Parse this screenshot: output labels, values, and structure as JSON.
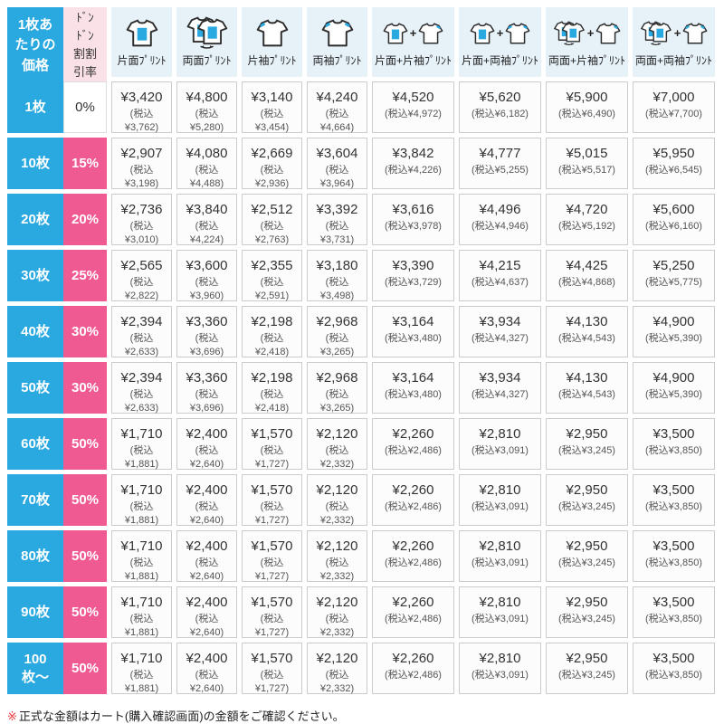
{
  "colors": {
    "blue": "#2AA9E0",
    "pink": "#EF5A93",
    "header_pink_bg": "#FAE1E7",
    "header_blue_bg": "#E6F1F8",
    "note_red": "#E8383D"
  },
  "header": {
    "price_label": "1枚あたりの価格",
    "discount_label": "ﾄﾞﾝﾄﾞﾝ割割引率",
    "columns": [
      {
        "label": "片面ﾌﾟﾘﾝﾄ",
        "icon": "front-print-shirt-icon"
      },
      {
        "label": "両面ﾌﾟﾘﾝﾄ",
        "icon": "double-sided-print-shirt-icon"
      },
      {
        "label": "片袖ﾌﾟﾘﾝﾄ",
        "icon": "one-sleeve-print-shirt-icon"
      },
      {
        "label": "両袖ﾌﾟﾘﾝﾄ",
        "icon": "both-sleeves-print-shirt-icon"
      },
      {
        "label": "片面+片袖ﾌﾟﾘﾝﾄ",
        "icon": "front-plus-one-sleeve-icon"
      },
      {
        "label": "片面+両袖ﾌﾟﾘﾝﾄ",
        "icon": "front-plus-both-sleeves-icon"
      },
      {
        "label": "両面+片袖ﾌﾟﾘﾝﾄ",
        "icon": "double-plus-one-sleeve-icon"
      },
      {
        "label": "両面+両袖ﾌﾟﾘﾝﾄ",
        "icon": "double-plus-both-sleeves-icon"
      }
    ]
  },
  "rows": [
    {
      "quantity": "1枚",
      "discount": "0%",
      "prices": [
        {
          "price": "¥3,420",
          "tax": "(税込¥3,762)"
        },
        {
          "price": "¥4,800",
          "tax": "(税込¥5,280)"
        },
        {
          "price": "¥3,140",
          "tax": "(税込¥3,454)"
        },
        {
          "price": "¥4,240",
          "tax": "(税込¥4,664)"
        },
        {
          "price": "¥4,520",
          "tax": "(税込¥4,972)"
        },
        {
          "price": "¥5,620",
          "tax": "(税込¥6,182)"
        },
        {
          "price": "¥5,900",
          "tax": "(税込¥6,490)"
        },
        {
          "price": "¥7,000",
          "tax": "(税込¥7,700)"
        }
      ]
    },
    {
      "quantity": "10枚",
      "discount": "15%",
      "prices": [
        {
          "price": "¥2,907",
          "tax": "(税込¥3,198)"
        },
        {
          "price": "¥4,080",
          "tax": "(税込¥4,488)"
        },
        {
          "price": "¥2,669",
          "tax": "(税込¥2,936)"
        },
        {
          "price": "¥3,604",
          "tax": "(税込¥3,964)"
        },
        {
          "price": "¥3,842",
          "tax": "(税込¥4,226)"
        },
        {
          "price": "¥4,777",
          "tax": "(税込¥5,255)"
        },
        {
          "price": "¥5,015",
          "tax": "(税込¥5,517)"
        },
        {
          "price": "¥5,950",
          "tax": "(税込¥6,545)"
        }
      ]
    },
    {
      "quantity": "20枚",
      "discount": "20%",
      "prices": [
        {
          "price": "¥2,736",
          "tax": "(税込¥3,010)"
        },
        {
          "price": "¥3,840",
          "tax": "(税込¥4,224)"
        },
        {
          "price": "¥2,512",
          "tax": "(税込¥2,763)"
        },
        {
          "price": "¥3,392",
          "tax": "(税込¥3,731)"
        },
        {
          "price": "¥3,616",
          "tax": "(税込¥3,978)"
        },
        {
          "price": "¥4,496",
          "tax": "(税込¥4,946)"
        },
        {
          "price": "¥4,720",
          "tax": "(税込¥5,192)"
        },
        {
          "price": "¥5,600",
          "tax": "(税込¥6,160)"
        }
      ]
    },
    {
      "quantity": "30枚",
      "discount": "25%",
      "prices": [
        {
          "price": "¥2,565",
          "tax": "(税込¥2,822)"
        },
        {
          "price": "¥3,600",
          "tax": "(税込¥3,960)"
        },
        {
          "price": "¥2,355",
          "tax": "(税込¥2,591)"
        },
        {
          "price": "¥3,180",
          "tax": "(税込¥3,498)"
        },
        {
          "price": "¥3,390",
          "tax": "(税込¥3,729)"
        },
        {
          "price": "¥4,215",
          "tax": "(税込¥4,637)"
        },
        {
          "price": "¥4,425",
          "tax": "(税込¥4,868)"
        },
        {
          "price": "¥5,250",
          "tax": "(税込¥5,775)"
        }
      ]
    },
    {
      "quantity": "40枚",
      "discount": "30%",
      "prices": [
        {
          "price": "¥2,394",
          "tax": "(税込¥2,633)"
        },
        {
          "price": "¥3,360",
          "tax": "(税込¥3,696)"
        },
        {
          "price": "¥2,198",
          "tax": "(税込¥2,418)"
        },
        {
          "price": "¥2,968",
          "tax": "(税込¥3,265)"
        },
        {
          "price": "¥3,164",
          "tax": "(税込¥3,480)"
        },
        {
          "price": "¥3,934",
          "tax": "(税込¥4,327)"
        },
        {
          "price": "¥4,130",
          "tax": "(税込¥4,543)"
        },
        {
          "price": "¥4,900",
          "tax": "(税込¥5,390)"
        }
      ]
    },
    {
      "quantity": "50枚",
      "discount": "30%",
      "prices": [
        {
          "price": "¥2,394",
          "tax": "(税込¥2,633)"
        },
        {
          "price": "¥3,360",
          "tax": "(税込¥3,696)"
        },
        {
          "price": "¥2,198",
          "tax": "(税込¥2,418)"
        },
        {
          "price": "¥2,968",
          "tax": "(税込¥3,265)"
        },
        {
          "price": "¥3,164",
          "tax": "(税込¥3,480)"
        },
        {
          "price": "¥3,934",
          "tax": "(税込¥4,327)"
        },
        {
          "price": "¥4,130",
          "tax": "(税込¥4,543)"
        },
        {
          "price": "¥4,900",
          "tax": "(税込¥5,390)"
        }
      ]
    },
    {
      "quantity": "60枚",
      "discount": "50%",
      "prices": [
        {
          "price": "¥1,710",
          "tax": "(税込¥1,881)"
        },
        {
          "price": "¥2,400",
          "tax": "(税込¥2,640)"
        },
        {
          "price": "¥1,570",
          "tax": "(税込¥1,727)"
        },
        {
          "price": "¥2,120",
          "tax": "(税込¥2,332)"
        },
        {
          "price": "¥2,260",
          "tax": "(税込¥2,486)"
        },
        {
          "price": "¥2,810",
          "tax": "(税込¥3,091)"
        },
        {
          "price": "¥2,950",
          "tax": "(税込¥3,245)"
        },
        {
          "price": "¥3,500",
          "tax": "(税込¥3,850)"
        }
      ]
    },
    {
      "quantity": "70枚",
      "discount": "50%",
      "prices": [
        {
          "price": "¥1,710",
          "tax": "(税込¥1,881)"
        },
        {
          "price": "¥2,400",
          "tax": "(税込¥2,640)"
        },
        {
          "price": "¥1,570",
          "tax": "(税込¥1,727)"
        },
        {
          "price": "¥2,120",
          "tax": "(税込¥2,332)"
        },
        {
          "price": "¥2,260",
          "tax": "(税込¥2,486)"
        },
        {
          "price": "¥2,810",
          "tax": "(税込¥3,091)"
        },
        {
          "price": "¥2,950",
          "tax": "(税込¥3,245)"
        },
        {
          "price": "¥3,500",
          "tax": "(税込¥3,850)"
        }
      ]
    },
    {
      "quantity": "80枚",
      "discount": "50%",
      "prices": [
        {
          "price": "¥1,710",
          "tax": "(税込¥1,881)"
        },
        {
          "price": "¥2,400",
          "tax": "(税込¥2,640)"
        },
        {
          "price": "¥1,570",
          "tax": "(税込¥1,727)"
        },
        {
          "price": "¥2,120",
          "tax": "(税込¥2,332)"
        },
        {
          "price": "¥2,260",
          "tax": "(税込¥2,486)"
        },
        {
          "price": "¥2,810",
          "tax": "(税込¥3,091)"
        },
        {
          "price": "¥2,950",
          "tax": "(税込¥3,245)"
        },
        {
          "price": "¥3,500",
          "tax": "(税込¥3,850)"
        }
      ]
    },
    {
      "quantity": "90枚",
      "discount": "50%",
      "prices": [
        {
          "price": "¥1,710",
          "tax": "(税込¥1,881)"
        },
        {
          "price": "¥2,400",
          "tax": "(税込¥2,640)"
        },
        {
          "price": "¥1,570",
          "tax": "(税込¥1,727)"
        },
        {
          "price": "¥2,120",
          "tax": "(税込¥2,332)"
        },
        {
          "price": "¥2,260",
          "tax": "(税込¥2,486)"
        },
        {
          "price": "¥2,810",
          "tax": "(税込¥3,091)"
        },
        {
          "price": "¥2,950",
          "tax": "(税込¥3,245)"
        },
        {
          "price": "¥3,500",
          "tax": "(税込¥3,850)"
        }
      ]
    },
    {
      "quantity": "100枚〜",
      "discount": "50%",
      "prices": [
        {
          "price": "¥1,710",
          "tax": "(税込¥1,881)"
        },
        {
          "price": "¥2,400",
          "tax": "(税込¥2,640)"
        },
        {
          "price": "¥1,570",
          "tax": "(税込¥1,727)"
        },
        {
          "price": "¥2,120",
          "tax": "(税込¥2,332)"
        },
        {
          "price": "¥2,260",
          "tax": "(税込¥2,486)"
        },
        {
          "price": "¥2,810",
          "tax": "(税込¥3,091)"
        },
        {
          "price": "¥2,950",
          "tax": "(税込¥3,245)"
        },
        {
          "price": "¥3,500",
          "tax": "(税込¥3,850)"
        }
      ]
    }
  ],
  "footer": {
    "note_mark": "※",
    "note": "正式な金額はカート(購入確認画面)の金額をご確認ください。"
  }
}
